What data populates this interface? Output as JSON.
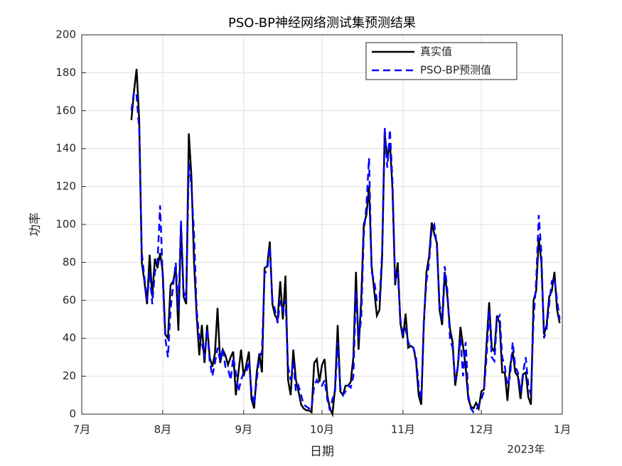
{
  "chart_data": {
    "type": "line",
    "title": "PSO-BP神经网络测试集预测结果",
    "xlabel": "日期",
    "ylabel": "功率",
    "x_secondary_label": "2023年",
    "x": [
      19,
      20,
      21,
      22,
      23,
      24,
      25,
      26,
      27,
      28,
      29,
      30,
      31,
      32,
      33,
      34,
      35,
      36,
      37,
      38,
      39,
      40,
      41,
      42,
      43,
      44,
      45,
      46,
      47,
      48,
      49,
      50,
      51,
      52,
      53,
      54,
      55,
      56,
      57,
      58,
      59,
      60,
      61,
      62,
      63,
      64,
      65,
      66,
      67,
      68,
      69,
      70,
      71,
      72,
      73,
      74,
      75,
      76,
      77,
      78,
      79,
      80,
      81,
      82,
      83,
      84,
      85,
      86,
      87,
      88,
      89,
      90,
      91,
      92,
      93,
      94,
      95,
      96,
      97,
      98,
      99,
      100,
      101,
      102,
      103,
      104,
      105,
      106,
      107,
      108,
      109,
      110,
      111,
      112,
      113,
      114,
      115,
      116,
      117,
      118,
      119,
      120,
      121,
      122,
      123,
      124,
      125,
      126,
      127,
      128,
      129,
      130,
      131,
      132,
      133,
      134,
      135,
      136,
      137,
      138,
      139,
      140,
      141,
      142,
      143,
      144,
      145,
      146,
      147,
      148,
      149,
      150,
      151,
      152,
      153,
      154,
      155,
      156,
      157,
      158,
      159,
      160,
      161,
      162,
      163,
      164,
      165,
      166,
      167,
      168,
      169,
      170,
      171,
      172,
      173,
      174,
      175,
      176,
      177,
      178,
      179,
      180,
      181,
      182,
      183
    ],
    "series": [
      {
        "name": "真实值",
        "color": "#000000",
        "line_style": "solid",
        "values": [
          155,
          170,
          182,
          155,
          80,
          70,
          58,
          84,
          62,
          82,
          77,
          85,
          75,
          42,
          40,
          68,
          70,
          77,
          44,
          100,
          62,
          58,
          148,
          125,
          80,
          52,
          31,
          47,
          27,
          47,
          30,
          25,
          32,
          56,
          27,
          34,
          31,
          26,
          30,
          33,
          10,
          22,
          34,
          20,
          26,
          33,
          8,
          3,
          22,
          32,
          22,
          77,
          78,
          91,
          58,
          52,
          50,
          70,
          50,
          73,
          18,
          10,
          34,
          18,
          12,
          5,
          3,
          2,
          2,
          1,
          27,
          29,
          17,
          26,
          29,
          10,
          3,
          0,
          14,
          47,
          12,
          10,
          15,
          15,
          17,
          30,
          75,
          34,
          60,
          100,
          105,
          120,
          78,
          65,
          52,
          55,
          82,
          148,
          135,
          143,
          118,
          68,
          80,
          48,
          40,
          53,
          35,
          36,
          35,
          28,
          10,
          5,
          48,
          75,
          83,
          101,
          95,
          90,
          55,
          47,
          75,
          62,
          45,
          38,
          15,
          25,
          46,
          36,
          25,
          8,
          4,
          3,
          6,
          3,
          12,
          13,
          37,
          59,
          35,
          33,
          52,
          48,
          22,
          22,
          7,
          25,
          33,
          22,
          20,
          8,
          21,
          22,
          9,
          5,
          60,
          65,
          93,
          80,
          42,
          47,
          62,
          65,
          75,
          55,
          48
        ]
      },
      {
        "name": "PSO-BP预测值",
        "color": "#0000ff",
        "line_style": "dashed",
        "values": [
          160,
          170,
          168,
          150,
          85,
          72,
          60,
          75,
          58,
          75,
          80,
          110,
          72,
          40,
          30,
          55,
          68,
          80,
          55,
          102,
          65,
          60,
          132,
          120,
          95,
          55,
          40,
          38,
          30,
          45,
          28,
          20,
          27,
          35,
          28,
          35,
          25,
          24,
          18,
          30,
          22,
          12,
          18,
          22,
          22,
          28,
          12,
          5,
          18,
          30,
          33,
          74,
          76,
          88,
          60,
          55,
          48,
          60,
          55,
          60,
          25,
          18,
          28,
          12,
          15,
          10,
          5,
          4,
          3,
          3,
          15,
          18,
          15,
          15,
          18,
          8,
          2,
          8,
          12,
          38,
          14,
          10,
          12,
          15,
          14,
          20,
          65,
          40,
          50,
          95,
          110,
          135,
          75,
          70,
          60,
          60,
          85,
          151,
          130,
          150,
          122,
          70,
          75,
          50,
          42,
          45,
          38,
          35,
          35,
          30,
          15,
          8,
          50,
          70,
          80,
          98,
          100,
          88,
          58,
          50,
          78,
          65,
          40,
          35,
          18,
          25,
          40,
          20,
          38,
          10,
          3,
          1,
          2,
          5,
          8,
          12,
          30,
          55,
          30,
          28,
          50,
          52,
          30,
          25,
          15,
          20,
          38,
          25,
          22,
          12,
          22,
          30,
          15,
          10,
          50,
          70,
          105,
          85,
          40,
          45,
          58,
          70,
          72,
          60,
          50
        ]
      }
    ],
    "xlim": [
      0,
      184
    ],
    "xticks": [
      {
        "value": 0,
        "label": "7月"
      },
      {
        "value": 31,
        "label": "8月"
      },
      {
        "value": 62,
        "label": "9月"
      },
      {
        "value": 92,
        "label": "10月"
      },
      {
        "value": 123,
        "label": "11月"
      },
      {
        "value": 153,
        "label": "12月"
      },
      {
        "value": 184,
        "label": "1月"
      }
    ],
    "ylim": [
      0,
      200
    ],
    "yticks": [
      0,
      20,
      40,
      60,
      80,
      100,
      120,
      140,
      160,
      180,
      200
    ],
    "grid": true,
    "legend": "upper right"
  }
}
